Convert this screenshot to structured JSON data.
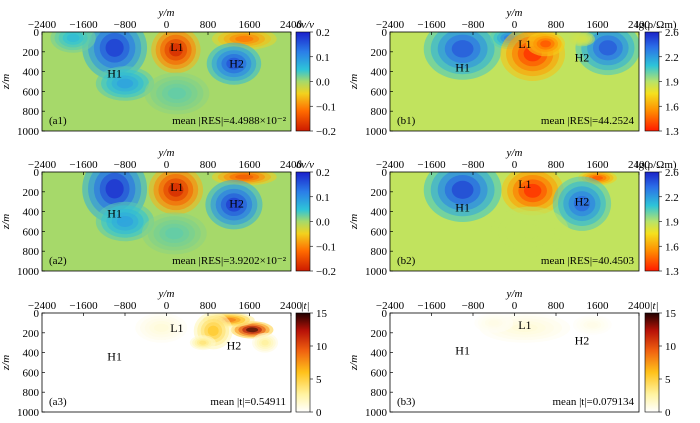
{
  "chart_data": [
    {
      "id": "a1",
      "type": "heatmap",
      "tag": "(a1)",
      "stat": "mean |RES|=4.4988×10⁻²",
      "xlabel": "y/m",
      "ylabel": "z/m",
      "xticks": [
        "−2400",
        "−1600",
        "−800",
        "0",
        "800",
        "1600",
        "2400"
      ],
      "yticks": [
        "0",
        "200",
        "400",
        "600",
        "800",
        "1000"
      ],
      "xlim": [
        -2400,
        2400
      ],
      "ylim": [
        0,
        1000
      ],
      "colorbar": {
        "kind": "dv",
        "label": "δv/v",
        "ticks": [
          "0.2",
          "0.1",
          "0.0",
          "−0.1",
          "−0.2"
        ],
        "range": [
          -0.2,
          0.2
        ]
      },
      "labels": [
        {
          "text": "L1",
          "y": 200,
          "z": 150
        },
        {
          "text": "H2",
          "y": 1350,
          "z": 320
        },
        {
          "text": "H1",
          "y": -1000,
          "z": 420
        }
      ],
      "anomalies": [
        {
          "y": -1000,
          "z": 160,
          "ry": 500,
          "rz": 260,
          "v": 0.19
        },
        {
          "y": -800,
          "z": 520,
          "ry": 450,
          "rz": 140,
          "v": 0.09
        },
        {
          "y": 180,
          "z": 180,
          "ry": 380,
          "rz": 190,
          "v": -0.2
        },
        {
          "y": 1500,
          "z": 70,
          "ry": 500,
          "rz": 90,
          "v": -0.12
        },
        {
          "y": 1300,
          "z": 320,
          "ry": 420,
          "rz": 170,
          "v": 0.17
        },
        {
          "y": 200,
          "z": 620,
          "ry": 500,
          "rz": 170,
          "v": 0.03
        },
        {
          "y": -1800,
          "z": 60,
          "ry": 350,
          "rz": 120,
          "v": 0.06
        }
      ]
    },
    {
      "id": "b1",
      "type": "heatmap",
      "tag": "(b1)",
      "stat": "mean |RES|=44.2524",
      "xlabel": "y/m",
      "ylabel": "z/m",
      "xticks": [
        "−2400",
        "−1600",
        "−800",
        "0",
        "800",
        "1600",
        "2400"
      ],
      "yticks": [
        "0",
        "200",
        "400",
        "600",
        "800",
        "1000"
      ],
      "xlim": [
        -2400,
        2400
      ],
      "ylim": [
        0,
        1000
      ],
      "colorbar": {
        "kind": "res",
        "label": "lg(ρ/Ωm)",
        "ticks": [
          "2.6",
          "2.2",
          "1.9",
          "1.6",
          "1.3"
        ],
        "range": [
          1.3,
          2.65
        ]
      },
      "labels": [
        {
          "text": "L1",
          "y": 200,
          "z": 120
        },
        {
          "text": "H2",
          "y": 1300,
          "z": 260
        },
        {
          "text": "H1",
          "y": -1000,
          "z": 360
        }
      ],
      "anomalies": [
        {
          "y": -1000,
          "z": 170,
          "ry": 600,
          "rz": 250,
          "v": 2.55
        },
        {
          "y": -100,
          "z": 60,
          "ry": 300,
          "rz": 90,
          "v": 2.45
        },
        {
          "y": 350,
          "z": 220,
          "ry": 500,
          "rz": 220,
          "v": 1.3
        },
        {
          "y": 600,
          "z": 120,
          "ry": 300,
          "rz": 100,
          "v": 1.4
        },
        {
          "y": 1800,
          "z": 160,
          "ry": 500,
          "rz": 220,
          "v": 2.55
        },
        {
          "y": 1300,
          "z": 70,
          "ry": 200,
          "rz": 60,
          "v": 1.9
        }
      ]
    },
    {
      "id": "a2",
      "type": "heatmap",
      "tag": "(a2)",
      "stat": "mean |RES|=3.9202×10⁻²",
      "xlabel": "y/m",
      "ylabel": "z/m",
      "xticks": [
        "−2400",
        "−1600",
        "−800",
        "0",
        "800",
        "1600",
        "2400"
      ],
      "yticks": [
        "0",
        "200",
        "400",
        "600",
        "800",
        "1000"
      ],
      "xlim": [
        -2400,
        2400
      ],
      "ylim": [
        0,
        1000
      ],
      "colorbar": {
        "kind": "dv",
        "label": "δv/v",
        "ticks": [
          "0.2",
          "0.1",
          "0.0",
          "−0.1",
          "−0.2"
        ],
        "range": [
          -0.2,
          0.2
        ]
      },
      "labels": [
        {
          "text": "L1",
          "y": 200,
          "z": 150
        },
        {
          "text": "H2",
          "y": 1350,
          "z": 320
        },
        {
          "text": "H1",
          "y": -1000,
          "z": 420
        }
      ],
      "anomalies": [
        {
          "y": -1000,
          "z": 170,
          "ry": 500,
          "rz": 280,
          "v": 0.2
        },
        {
          "y": -800,
          "z": 500,
          "ry": 450,
          "rz": 160,
          "v": 0.09
        },
        {
          "y": 180,
          "z": 180,
          "ry": 420,
          "rz": 200,
          "v": -0.2
        },
        {
          "y": 1500,
          "z": 50,
          "ry": 500,
          "rz": 70,
          "v": -0.15
        },
        {
          "y": 1300,
          "z": 330,
          "ry": 440,
          "rz": 200,
          "v": 0.19
        },
        {
          "y": 150,
          "z": 620,
          "ry": 500,
          "rz": 170,
          "v": 0.03
        }
      ]
    },
    {
      "id": "b2",
      "type": "heatmap",
      "tag": "(b2)",
      "stat": "mean |RES|=40.4503",
      "xlabel": "y/m",
      "ylabel": "z/m",
      "xticks": [
        "−2400",
        "−1600",
        "−800",
        "0",
        "800",
        "1600",
        "2400"
      ],
      "yticks": [
        "0",
        "200",
        "400",
        "600",
        "800",
        "1000"
      ],
      "xlim": [
        -2400,
        2400
      ],
      "ylim": [
        0,
        1000
      ],
      "colorbar": {
        "kind": "res",
        "label": "lg(ρ/Ωm)",
        "ticks": [
          "2.6",
          "2.2",
          "1.9",
          "1.6",
          "1.3"
        ],
        "range": [
          1.3,
          2.65
        ]
      },
      "labels": [
        {
          "text": "L1",
          "y": 200,
          "z": 120
        },
        {
          "text": "H2",
          "y": 1300,
          "z": 300
        },
        {
          "text": "H1",
          "y": -1000,
          "z": 360
        }
      ],
      "anomalies": [
        {
          "y": -1000,
          "z": 180,
          "ry": 600,
          "rz": 260,
          "v": 2.6
        },
        {
          "y": 350,
          "z": 190,
          "ry": 480,
          "rz": 200,
          "v": 1.3
        },
        {
          "y": 1600,
          "z": 60,
          "ry": 300,
          "rz": 60,
          "v": 1.4
        },
        {
          "y": 1300,
          "z": 320,
          "ry": 450,
          "rz": 220,
          "v": 2.5
        },
        {
          "y": 300,
          "z": 600,
          "ry": 600,
          "rz": 200,
          "v": 1.95
        }
      ]
    },
    {
      "id": "a3",
      "type": "heatmap",
      "tag": "(a3)",
      "stat": "mean |t|=0.54911",
      "xlabel": "y/m",
      "ylabel": "z/m",
      "xticks": [
        "−2400",
        "−1600",
        "−800",
        "0",
        "800",
        "1600",
        "2400"
      ],
      "yticks": [
        "0",
        "200",
        "400",
        "600",
        "800",
        "1000"
      ],
      "xlim": [
        -2400,
        2400
      ],
      "ylim": [
        0,
        1000
      ],
      "colorbar": {
        "kind": "t",
        "label": "|t|",
        "ticks": [
          "15",
          "10",
          "5",
          "0"
        ],
        "range": [
          0,
          15
        ]
      },
      "labels": [
        {
          "text": "L1",
          "y": 200,
          "z": 150
        },
        {
          "text": "H2",
          "y": 1300,
          "z": 330
        },
        {
          "text": "H1",
          "y": -1000,
          "z": 440
        }
      ],
      "anomalies": [
        {
          "y": 1650,
          "z": 170,
          "ry": 330,
          "rz": 70,
          "v": 15
        },
        {
          "y": 1200,
          "z": 70,
          "ry": 400,
          "rz": 60,
          "v": 9
        },
        {
          "y": 900,
          "z": 180,
          "ry": 300,
          "rz": 150,
          "v": 6
        },
        {
          "y": 700,
          "z": 300,
          "ry": 200,
          "rz": 60,
          "v": 4
        },
        {
          "y": -100,
          "z": 150,
          "ry": 400,
          "rz": 120,
          "v": 1.2
        },
        {
          "y": 1900,
          "z": 300,
          "ry": 200,
          "rz": 80,
          "v": 3
        }
      ]
    },
    {
      "id": "b3",
      "type": "heatmap",
      "tag": "(b3)",
      "stat": "mean |t|=0.079134",
      "xlabel": "y/m",
      "ylabel": "z/m",
      "xticks": [
        "−2400",
        "−1600",
        "−800",
        "0",
        "800",
        "1600",
        "2400"
      ],
      "yticks": [
        "0",
        "200",
        "400",
        "600",
        "800",
        "1000"
      ],
      "xlim": [
        -2400,
        2400
      ],
      "ylim": [
        0,
        1000
      ],
      "colorbar": {
        "kind": "t",
        "label": "|t|",
        "ticks": [
          "15",
          "10",
          "5",
          "0"
        ],
        "range": [
          0,
          15
        ]
      },
      "labels": [
        {
          "text": "L1",
          "y": 200,
          "z": 120
        },
        {
          "text": "H2",
          "y": 1300,
          "z": 280
        },
        {
          "text": "H1",
          "y": -1000,
          "z": 380
        }
      ],
      "anomalies": [
        {
          "y": 200,
          "z": 150,
          "ry": 700,
          "rz": 120,
          "v": 1.2
        },
        {
          "y": -400,
          "z": 100,
          "ry": 300,
          "rz": 80,
          "v": 0.8
        },
        {
          "y": 1500,
          "z": 120,
          "ry": 300,
          "rz": 80,
          "v": 0.7
        }
      ]
    }
  ]
}
